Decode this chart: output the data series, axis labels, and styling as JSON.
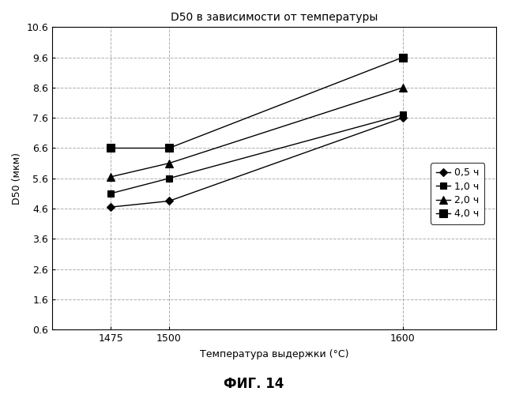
{
  "title": "D50 в зависимости от температуры",
  "xlabel": "Температура выдержки (°C)",
  "ylabel": "D50 (мкм)",
  "figcaption": "ФИГ. 14",
  "x": [
    1475,
    1500,
    1600
  ],
  "series": [
    {
      "label": "0,5 ч",
      "marker": "D",
      "values": [
        4.65,
        4.85,
        7.6
      ]
    },
    {
      "label": "1,0 ч",
      "marker": "s",
      "values": [
        5.1,
        5.6,
        7.7
      ]
    },
    {
      "label": "2,0 ч",
      "marker": "^",
      "values": [
        5.65,
        6.1,
        8.6
      ]
    },
    {
      "label": "4,0 ч",
      "marker": "s",
      "values": [
        6.6,
        6.6,
        9.6
      ]
    }
  ],
  "ylim": [
    0.6,
    10.6
  ],
  "yticks": [
    0.6,
    1.6,
    2.6,
    3.6,
    4.6,
    5.6,
    6.6,
    7.6,
    8.6,
    9.6,
    10.6
  ],
  "xticks": [
    1475,
    1500,
    1600
  ],
  "line_color": "#000000",
  "grid_color": "#999999",
  "title_fontsize": 10,
  "label_fontsize": 9,
  "tick_fontsize": 9,
  "caption_fontsize": 12,
  "legend_fontsize": 9
}
